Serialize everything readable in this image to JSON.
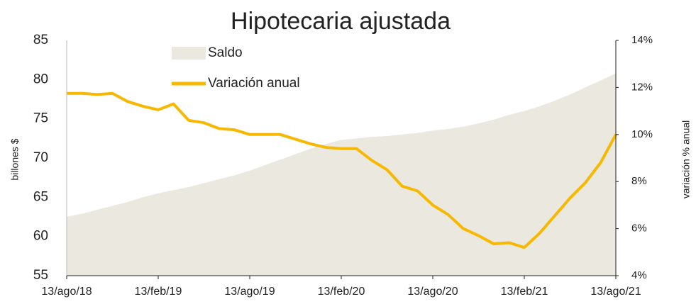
{
  "chart_data": {
    "type": "area-line",
    "title": "Hipotecaria ajustada",
    "ylabel": "billones $",
    "y2label": "variación % anual",
    "categories": [
      "13/ago/18",
      null,
      null,
      null,
      null,
      null,
      "13/feb/19",
      null,
      null,
      null,
      null,
      null,
      "13/ago/19",
      null,
      null,
      null,
      null,
      null,
      "13/feb/20",
      null,
      null,
      null,
      null,
      null,
      "13/ago/20",
      null,
      null,
      null,
      null,
      null,
      "13/feb/21",
      null,
      null,
      null,
      null,
      null,
      "13/ago/21"
    ],
    "series": [
      {
        "name": "Saldo",
        "color": "#ebe8df",
        "kind": "area",
        "values": [
          62.5,
          62.9,
          63.4,
          63.9,
          64.4,
          65.0,
          65.5,
          65.9,
          66.3,
          66.8,
          67.3,
          67.8,
          68.4,
          69.1,
          69.8,
          70.5,
          71.2,
          71.8,
          72.3,
          72.5,
          72.7,
          72.8,
          73.0,
          73.2,
          73.5,
          73.7,
          74.0,
          74.4,
          74.9,
          75.5,
          76.0,
          76.6,
          77.3,
          78.1,
          79.0,
          79.9,
          80.8
        ]
      },
      {
        "name": "Variación anual",
        "color": "#f6b800",
        "kind": "line",
        "axis": "y2",
        "values": [
          11.75,
          11.75,
          11.7,
          11.75,
          11.4,
          11.2,
          11.05,
          11.3,
          10.6,
          10.5,
          10.25,
          10.2,
          10.0,
          10.0,
          10.0,
          9.8,
          9.6,
          9.45,
          9.4,
          9.4,
          8.9,
          8.5,
          7.8,
          7.6,
          7.0,
          6.6,
          6.0,
          5.7,
          5.35,
          5.4,
          5.2,
          5.8,
          6.55,
          7.3,
          7.95,
          8.8,
          10.0
        ]
      }
    ],
    "ylim": [
      55,
      85
    ],
    "yticks": [
      55,
      60,
      65,
      70,
      75,
      80,
      85
    ],
    "y2lim": [
      4,
      14
    ],
    "y2ticks": [
      {
        "value": 4,
        "label": "4%"
      },
      {
        "value": 6,
        "label": "6%"
      },
      {
        "value": 8,
        "label": "8%"
      },
      {
        "value": 10,
        "label": "10%"
      },
      {
        "value": 12,
        "label": "12%"
      },
      {
        "value": 14,
        "label": "14%"
      }
    ]
  }
}
